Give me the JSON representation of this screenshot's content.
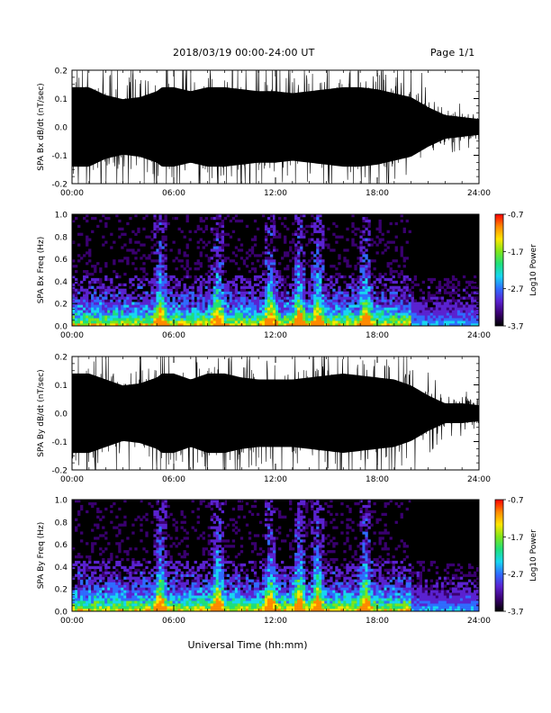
{
  "header": {
    "title": "2018/03/19  00:00-24:00 UT",
    "page": "Page 1/1"
  },
  "colors": {
    "trace": "#000000",
    "background": "#ffffff",
    "colorbar": [
      "#000000",
      "#3a0070",
      "#5a22d0",
      "#2f6cff",
      "#17d6f0",
      "#1fe07a",
      "#7fe61a",
      "#ffe600",
      "#ff8a00",
      "#ff0000"
    ]
  },
  "chart_data": [
    {
      "id": "bx-waveform",
      "type": "line",
      "ylabel": "SPA Bx dB/dt (nT/sec)",
      "ylim": [
        -0.2,
        0.2
      ],
      "yticks": [
        "-0.2",
        "-0.1",
        "0.0",
        "0.1",
        "0.2"
      ],
      "xlim": [
        "00:00",
        "24:00"
      ],
      "xticks": [
        "00:00",
        "06:00",
        "12:00",
        "18:00",
        "24:00"
      ],
      "x_hours": [
        0,
        1,
        2,
        3,
        4,
        5,
        5.3,
        6,
        7,
        8,
        8.7,
        9,
        10,
        11,
        12,
        13,
        14,
        15,
        16,
        17,
        18,
        19,
        20,
        21,
        22,
        23,
        24
      ],
      "envelope": [
        0.2,
        0.2,
        0.16,
        0.14,
        0.15,
        0.18,
        0.2,
        0.2,
        0.18,
        0.2,
        0.2,
        0.2,
        0.19,
        0.18,
        0.18,
        0.17,
        0.18,
        0.19,
        0.2,
        0.2,
        0.19,
        0.17,
        0.15,
        0.1,
        0.06,
        0.05,
        0.04
      ]
    },
    {
      "id": "bx-spectrogram",
      "type": "heatmap",
      "ylabel": "SPA Bx Freq (Hz)",
      "ylim": [
        0.0,
        1.0
      ],
      "yticks": [
        "0.0",
        "0.2",
        "0.4",
        "0.6",
        "0.8",
        "1.0"
      ],
      "xlim": [
        "00:00",
        "24:00"
      ],
      "xticks": [
        "00:00",
        "06:00",
        "12:00",
        "18:00",
        "24:00"
      ],
      "colorbar_label": "Log10 Power",
      "colorbar_range": [
        -3.7,
        -0.7
      ],
      "colorbar_ticks": [
        "-0.7",
        "-1.7",
        "-2.7",
        "-3.7"
      ],
      "bright_bursts_hours": [
        5.2,
        8.6,
        11.7,
        13.4,
        14.5,
        17.3
      ]
    },
    {
      "id": "by-waveform",
      "type": "line",
      "ylabel": "SPA By dB/dt (nT/sec)",
      "ylim": [
        -0.2,
        0.2
      ],
      "yticks": [
        "-0.2",
        "-0.1",
        "0.0",
        "0.1",
        "0.2"
      ],
      "xlim": [
        "00:00",
        "24:00"
      ],
      "xticks": [
        "00:00",
        "06:00",
        "12:00",
        "18:00",
        "24:00"
      ],
      "x_hours": [
        0,
        1,
        2,
        3,
        4,
        5,
        5.3,
        6,
        7,
        8,
        8.7,
        9,
        10,
        11,
        12,
        13,
        14,
        15,
        16,
        17,
        18,
        19,
        20,
        21,
        22,
        23,
        24
      ],
      "envelope": [
        0.2,
        0.2,
        0.17,
        0.14,
        0.15,
        0.18,
        0.2,
        0.2,
        0.17,
        0.2,
        0.2,
        0.2,
        0.18,
        0.17,
        0.17,
        0.17,
        0.18,
        0.19,
        0.2,
        0.19,
        0.18,
        0.17,
        0.14,
        0.09,
        0.05,
        0.05,
        0.04
      ]
    },
    {
      "id": "by-spectrogram",
      "type": "heatmap",
      "ylabel": "SPA By Freq (Hz)",
      "ylim": [
        0.0,
        1.0
      ],
      "yticks": [
        "0.0",
        "0.2",
        "0.4",
        "0.6",
        "0.8",
        "1.0"
      ],
      "xlim": [
        "00:00",
        "24:00"
      ],
      "xticks": [
        "00:00",
        "06:00",
        "12:00",
        "18:00",
        "24:00"
      ],
      "colorbar_label": "Log10 Power",
      "colorbar_range": [
        -3.7,
        -0.7
      ],
      "colorbar_ticks": [
        "-0.7",
        "-1.7",
        "-2.7",
        "-3.7"
      ],
      "bright_bursts_hours": [
        5.2,
        8.6,
        11.7,
        13.4,
        14.5,
        17.3
      ]
    }
  ],
  "xlabel": "Universal Time (hh:mm)"
}
